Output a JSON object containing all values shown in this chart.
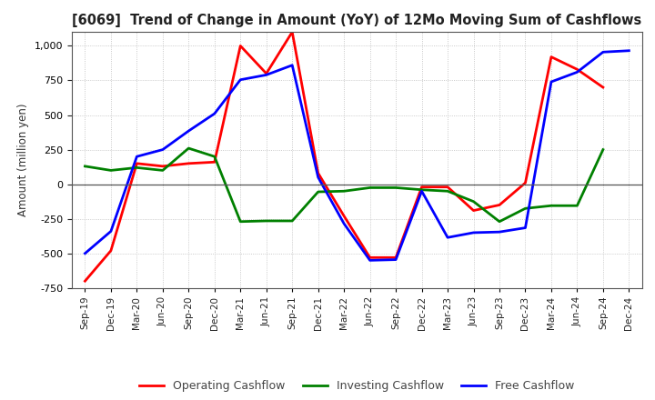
{
  "title": "[6069]  Trend of Change in Amount (YoY) of 12Mo Moving Sum of Cashflows",
  "ylabel": "Amount (million yen)",
  "x_labels": [
    "Sep-19",
    "Dec-19",
    "Mar-20",
    "Jun-20",
    "Sep-20",
    "Dec-20",
    "Mar-21",
    "Jun-21",
    "Sep-21",
    "Dec-21",
    "Mar-22",
    "Jun-22",
    "Sep-22",
    "Dec-22",
    "Mar-23",
    "Jun-23",
    "Sep-23",
    "Dec-23",
    "Mar-24",
    "Jun-24",
    "Sep-24",
    "Dec-24"
  ],
  "operating": [
    -700,
    -480,
    150,
    130,
    150,
    160,
    1000,
    800,
    1100,
    80,
    -230,
    -530,
    -530,
    -20,
    -20,
    -190,
    -150,
    10,
    920,
    830,
    700,
    null
  ],
  "investing": [
    130,
    100,
    120,
    100,
    260,
    200,
    -270,
    -265,
    -265,
    -55,
    -50,
    -25,
    -25,
    -40,
    -50,
    -125,
    -270,
    -175,
    -155,
    -155,
    250,
    null
  ],
  "free": [
    -500,
    -340,
    200,
    250,
    385,
    510,
    755,
    790,
    860,
    50,
    -285,
    -550,
    -545,
    -50,
    -385,
    -350,
    -345,
    -315,
    740,
    810,
    955,
    965
  ],
  "ylim": [
    -750,
    1100
  ],
  "yticks": [
    -750,
    -500,
    -250,
    0,
    250,
    500,
    750,
    1000
  ],
  "operating_color": "#ff0000",
  "investing_color": "#008000",
  "free_color": "#0000ff",
  "line_width": 2.0,
  "background_color": "#ffffff",
  "grid_color": "#bbbbbb",
  "legend_text_color": "#444444"
}
